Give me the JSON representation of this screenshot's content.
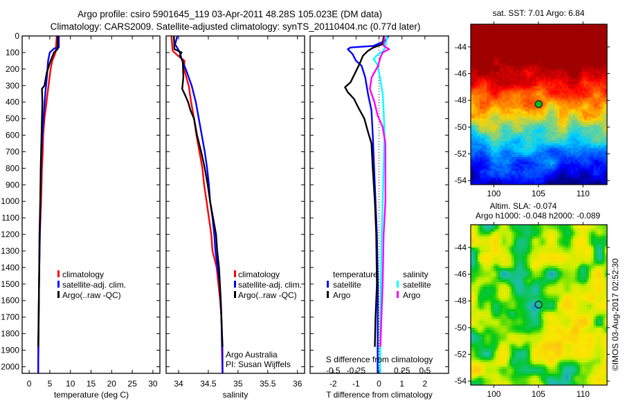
{
  "header": {
    "title_line1": "Argo profile: csiro 5901645_119 03-Apr-2011 48.28S 105.023E (DM data)",
    "title_line2": "Climatology: CARS2009. Satellite-adjusted climatology: synTS_20110404.nc (0.77d later)"
  },
  "chart_data": [
    {
      "type": "line",
      "id": "temperature",
      "xlabel": "temperature (deg C)",
      "ylabel": "",
      "xlim": [
        -1.7,
        31.7
      ],
      "ylim": [
        0,
        2040
      ],
      "xticks": [
        0,
        5,
        10,
        15,
        20,
        25,
        30
      ],
      "yticks": [
        0,
        100,
        200,
        300,
        400,
        500,
        600,
        700,
        800,
        900,
        1000,
        1100,
        1200,
        1300,
        1400,
        1500,
        1600,
        1700,
        1800,
        1900,
        2000
      ],
      "legend": [
        "climatology",
        "satellite-adj. clim.",
        "Argo(..raw -QC)"
      ],
      "series": [
        {
          "name": "climatology",
          "color": "#ff0000",
          "points": [
            [
              0,
              6.7
            ],
            [
              100,
              6.4
            ],
            [
              150,
              5.6
            ],
            [
              200,
              5.2
            ],
            [
              300,
              4.7
            ],
            [
              400,
              4.2
            ],
            [
              500,
              3.7
            ],
            [
              600,
              3.4
            ],
            [
              700,
              3.3
            ],
            [
              800,
              3.1
            ],
            [
              1000,
              2.9
            ],
            [
              1200,
              2.6
            ],
            [
              1500,
              2.4
            ],
            [
              2000,
              2.2
            ],
            [
              2040,
              2.2
            ]
          ]
        },
        {
          "name": "satellite-adj. clim.",
          "color": "#0000ff",
          "points": [
            [
              0,
              7.2
            ],
            [
              70,
              7.2
            ],
            [
              75,
              6.1
            ],
            [
              100,
              5.0
            ],
            [
              150,
              4.6
            ],
            [
              250,
              4.3
            ],
            [
              350,
              3.9
            ],
            [
              450,
              3.6
            ],
            [
              550,
              3.3
            ],
            [
              650,
              3.1
            ],
            [
              750,
              2.9
            ],
            [
              1000,
              2.7
            ],
            [
              1200,
              2.5
            ],
            [
              1500,
              2.4
            ],
            [
              2000,
              2.2
            ],
            [
              2040,
              2.2
            ]
          ]
        },
        {
          "name": "Argo(..raw -QC)",
          "color": "#000000",
          "points": [
            [
              0,
              6.9
            ],
            [
              80,
              6.9
            ],
            [
              100,
              6.0
            ],
            [
              150,
              5.2
            ],
            [
              220,
              4.3
            ],
            [
              300,
              3.7
            ],
            [
              320,
              3.1
            ],
            [
              400,
              3.2
            ],
            [
              500,
              3.1
            ],
            [
              600,
              3.0
            ],
            [
              800,
              2.8
            ],
            [
              1000,
              2.7
            ],
            [
              1500,
              2.4
            ],
            [
              1880,
              2.2
            ]
          ]
        }
      ]
    },
    {
      "type": "line",
      "id": "salinity",
      "xlabel": "salinity",
      "ylabel": "",
      "xlim": [
        33.79,
        36.12
      ],
      "ylim": [
        0,
        2040
      ],
      "xticks": [
        34,
        34.5,
        35,
        35.5,
        36
      ],
      "xticklabels": [
        "34",
        "34.5",
        "35",
        "35.5",
        "36"
      ],
      "legend": [
        "climatology",
        "satellite-adj. clim.",
        "Argo(..raw -QC)"
      ],
      "annotation": [
        "Argo Australia",
        "PI: Susan Wijffels"
      ],
      "series": [
        {
          "name": "climatology",
          "color": "#ff0000",
          "points": [
            [
              0,
              33.88
            ],
            [
              90,
              33.9
            ],
            [
              120,
              33.99
            ],
            [
              150,
              34.1
            ],
            [
              200,
              34.09
            ],
            [
              300,
              34.17
            ],
            [
              400,
              34.21
            ],
            [
              500,
              34.26
            ],
            [
              600,
              34.3
            ],
            [
              700,
              34.35
            ],
            [
              800,
              34.4
            ],
            [
              900,
              34.43
            ],
            [
              1000,
              34.47
            ],
            [
              1100,
              34.51
            ],
            [
              1200,
              34.55
            ],
            [
              1300,
              34.57
            ],
            [
              1400,
              34.64
            ],
            [
              1500,
              34.67
            ],
            [
              1600,
              34.7
            ],
            [
              1700,
              34.72
            ],
            [
              1800,
              34.73
            ],
            [
              1900,
              34.74
            ],
            [
              2040,
              34.74
            ]
          ]
        },
        {
          "name": "satellite-adj. clim.",
          "color": "#0000ff",
          "points": [
            [
              0,
              33.98
            ],
            [
              50,
              33.94
            ],
            [
              80,
              33.99
            ],
            [
              100,
              34.02
            ],
            [
              150,
              34.06
            ],
            [
              200,
              34.12
            ],
            [
              250,
              34.17
            ],
            [
              300,
              34.22
            ],
            [
              400,
              34.29
            ],
            [
              500,
              34.34
            ],
            [
              600,
              34.39
            ],
            [
              700,
              34.44
            ],
            [
              800,
              34.48
            ],
            [
              900,
              34.51
            ],
            [
              1000,
              34.53
            ],
            [
              1100,
              34.57
            ],
            [
              1200,
              34.6
            ],
            [
              1300,
              34.62
            ],
            [
              1500,
              34.69
            ],
            [
              1700,
              34.72
            ],
            [
              2040,
              34.74
            ]
          ]
        },
        {
          "name": "Argo(..raw -QC)",
          "color": "#000000",
          "points": [
            [
              0,
              33.92
            ],
            [
              80,
              33.93
            ],
            [
              100,
              34.05
            ],
            [
              120,
              34.02
            ],
            [
              150,
              34.07
            ],
            [
              250,
              34.08
            ],
            [
              320,
              34.06
            ],
            [
              350,
              34.1
            ],
            [
              400,
              34.16
            ],
            [
              450,
              34.2
            ],
            [
              500,
              34.26
            ],
            [
              600,
              34.31
            ],
            [
              700,
              34.38
            ],
            [
              800,
              34.44
            ],
            [
              900,
              34.49
            ],
            [
              1000,
              34.53
            ],
            [
              1100,
              34.58
            ],
            [
              1200,
              34.63
            ],
            [
              1300,
              34.65
            ],
            [
              1400,
              34.68
            ],
            [
              1600,
              34.71
            ],
            [
              1800,
              34.73
            ],
            [
              1880,
              34.74
            ]
          ]
        }
      ]
    },
    {
      "type": "line",
      "id": "difference",
      "xlabel": "T difference from climatology",
      "x2label": "S difference from climatology",
      "xlim": [
        -3,
        3.03
      ],
      "x2lim": [
        -0.75,
        0.757
      ],
      "ylim": [
        0,
        2040
      ],
      "xticks": [
        -2,
        -1,
        0,
        1,
        2
      ],
      "x2ticks": [
        -0.5,
        -0.25,
        0,
        0.25,
        0.5
      ],
      "x2ticklabels": [
        "-0.5",
        "-0.25",
        "0",
        "0.25",
        "0.5"
      ],
      "legend_temperature": {
        "title": "temperature",
        "items": [
          "satellite",
          "Argo"
        ]
      },
      "legend_salinity": {
        "title": "salinity",
        "items": [
          "satellite",
          "Argo"
        ]
      },
      "series": [
        {
          "name": "T satellite",
          "axis": "T",
          "color": "#0000ff",
          "points": [
            [
              0,
              0.42
            ],
            [
              30,
              0.27
            ],
            [
              60,
              -0.24
            ],
            [
              70,
              -1.24
            ],
            [
              80,
              -1.36
            ],
            [
              110,
              -1.15
            ],
            [
              150,
              -1.0
            ],
            [
              180,
              -0.76
            ],
            [
              250,
              -0.6
            ],
            [
              350,
              -0.48
            ],
            [
              450,
              -0.33
            ],
            [
              600,
              -0.27
            ],
            [
              800,
              -0.21
            ],
            [
              1000,
              -0.15
            ],
            [
              1200,
              -0.09
            ],
            [
              1500,
              -0.05
            ],
            [
              2040,
              -0.06
            ]
          ]
        },
        {
          "name": "T Argo",
          "axis": "T",
          "color": "#000000",
          "points": [
            [
              0,
              0.21
            ],
            [
              50,
              0.15
            ],
            [
              70,
              -0.24
            ],
            [
              90,
              -0.48
            ],
            [
              120,
              -0.7
            ],
            [
              170,
              -0.85
            ],
            [
              230,
              -1.06
            ],
            [
              280,
              -1.24
            ],
            [
              310,
              -1.48
            ],
            [
              340,
              -1.36
            ],
            [
              380,
              -1.09
            ],
            [
              430,
              -0.91
            ],
            [
              500,
              -0.64
            ],
            [
              580,
              -0.48
            ],
            [
              650,
              -0.33
            ],
            [
              800,
              -0.27
            ],
            [
              1000,
              -0.18
            ],
            [
              1200,
              -0.12
            ],
            [
              1500,
              -0.09
            ],
            [
              1700,
              -0.15
            ],
            [
              1880,
              -0.18
            ]
          ]
        },
        {
          "name": "S satellite",
          "axis": "S",
          "color": "#00ffff",
          "points": [
            [
              0,
              0.09
            ],
            [
              60,
              0.07
            ],
            [
              90,
              0.05
            ],
            [
              110,
              -0.01
            ],
            [
              140,
              -0.06
            ],
            [
              170,
              -0.02
            ],
            [
              250,
              0.01
            ],
            [
              350,
              0.04
            ],
            [
              450,
              0.05
            ],
            [
              600,
              0.06
            ],
            [
              800,
              0.05
            ],
            [
              1000,
              0.04
            ],
            [
              1200,
              0.03
            ],
            [
              1500,
              0.02
            ],
            [
              2040,
              0.01
            ]
          ]
        },
        {
          "name": "S Argo",
          "axis": "S",
          "color": "#ff00ff",
          "points": [
            [
              0,
              0.06
            ],
            [
              60,
              0.05
            ],
            [
              80,
              0.11
            ],
            [
              100,
              0.04
            ],
            [
              130,
              0.015
            ],
            [
              180,
              -0.01
            ],
            [
              250,
              -0.08
            ],
            [
              320,
              -0.1
            ],
            [
              400,
              -0.05
            ],
            [
              480,
              -0.015
            ],
            [
              550,
              0.04
            ],
            [
              650,
              0.07
            ],
            [
              800,
              0.07
            ],
            [
              1000,
              0.07
            ],
            [
              1200,
              0.05
            ],
            [
              1500,
              0.04
            ],
            [
              1880,
              0.015
            ]
          ]
        }
      ]
    },
    {
      "type": "heatmap",
      "id": "sst-map",
      "title": "sat. SST: 7.01  Argo: 6.84",
      "xlim": [
        97.4,
        112.7
      ],
      "ylim": [
        -54.3,
        -42.3
      ],
      "xticks": [
        100,
        105,
        110
      ],
      "yticks": [
        -44,
        -46,
        -48,
        -50,
        -52,
        -54
      ],
      "marker": {
        "lon": 105.023,
        "lat": -48.28
      }
    },
    {
      "type": "heatmap",
      "id": "sla-map",
      "title_line1": "Altim. SLA: -0.074",
      "title_line2": "Argo h1000: -0.048 h2000: -0.089",
      "xlim": [
        97.4,
        112.7
      ],
      "ylim": [
        -54.3,
        -42.3
      ],
      "xticks": [
        100,
        105,
        110
      ],
      "yticks": [
        -44,
        -46,
        -48,
        -50,
        -52,
        -54
      ],
      "marker": {
        "lon": 105.023,
        "lat": -48.28
      }
    }
  ],
  "footer": {
    "copyright": "©IMOS 03-Aug-2017 02:52:30"
  }
}
